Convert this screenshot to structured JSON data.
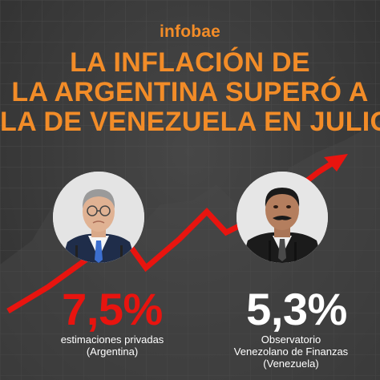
{
  "brand": {
    "name": "infobae",
    "color": "#f28c28"
  },
  "headline": {
    "lines": [
      "LA INFLACIÓN DE",
      "LA ARGENTINA SUPERÓ A",
      "LA DE VENEZUELA EN JULIO"
    ],
    "color": "#f28c28"
  },
  "trend_arrow": {
    "color": "#e8140f",
    "direction": "up-right",
    "icon": "trend-arrow-icon"
  },
  "stats": [
    {
      "value": "7,5%",
      "color": "#e8140f",
      "caption_lines": [
        "estimaciones privadas",
        "(Argentina)"
      ],
      "portrait_icon": "man-portrait-icon"
    },
    {
      "value": "5,3%",
      "color": "#ffffff",
      "caption_lines": [
        "Observatorio",
        "Venezolano de Finanzas",
        "(Venezuela)"
      ],
      "portrait_icon": "man-portrait-icon"
    }
  ]
}
